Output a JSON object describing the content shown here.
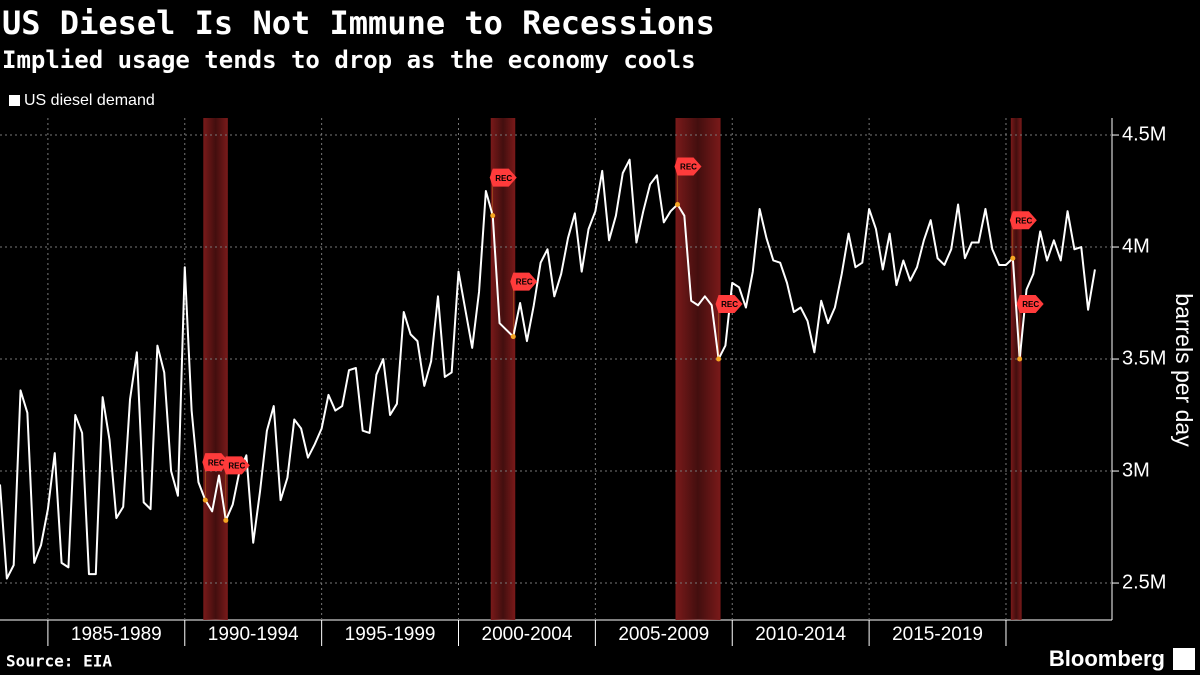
{
  "chart_data": {
    "type": "line",
    "title": "US Diesel Is Not Immune to Recessions",
    "subtitle": "Implied usage tends to drop as the economy cools",
    "y_label": "barrels per day",
    "source": "Source: EIA",
    "brand": "Bloomberg",
    "recession_label": "REC",
    "recession_color": "#7a1a1a",
    "marker_color": "#f5a623",
    "grid": true,
    "legend": "top-left",
    "x": [
      1983.25,
      1983.5,
      1983.75,
      1984,
      1984.25,
      1984.5,
      1984.75,
      1985,
      1985.25,
      1985.5,
      1985.75,
      1986,
      1986.25,
      1986.5,
      1986.75,
      1987,
      1987.25,
      1987.5,
      1987.75,
      1988,
      1988.25,
      1988.5,
      1988.75,
      1989,
      1989.25,
      1989.5,
      1989.75,
      1990,
      1990.25,
      1990.5,
      1990.75,
      1991,
      1991.25,
      1991.5,
      1991.75,
      1992,
      1992.25,
      1992.5,
      1992.75,
      1993,
      1993.25,
      1993.5,
      1993.75,
      1994,
      1994.25,
      1994.5,
      1994.75,
      1995,
      1995.25,
      1995.5,
      1995.75,
      1996,
      1996.25,
      1996.5,
      1996.75,
      1997,
      1997.25,
      1997.5,
      1997.75,
      1998,
      1998.25,
      1998.5,
      1998.75,
      1999,
      1999.25,
      1999.5,
      1999.75,
      2000,
      2000.25,
      2000.5,
      2000.75,
      2001,
      2001.25,
      2001.5,
      2001.75,
      2002,
      2002.25,
      2002.5,
      2002.75,
      2003,
      2003.25,
      2003.5,
      2003.75,
      2004,
      2004.25,
      2004.5,
      2004.75,
      2005,
      2005.25,
      2005.5,
      2005.75,
      2006,
      2006.25,
      2006.5,
      2006.75,
      2007,
      2007.25,
      2007.5,
      2007.75,
      2008,
      2008.25,
      2008.5,
      2008.75,
      2009,
      2009.25,
      2009.5,
      2009.75,
      2010,
      2010.25,
      2010.5,
      2010.75,
      2011,
      2011.25,
      2011.5,
      2011.75,
      2012,
      2012.25,
      2012.5,
      2012.75,
      2013,
      2013.25,
      2013.5,
      2013.75,
      2014,
      2014.25,
      2014.5,
      2014.75,
      2015,
      2015.25,
      2015.5,
      2015.75,
      2016,
      2016.25,
      2016.5,
      2016.75,
      2017,
      2017.25,
      2017.5,
      2017.75,
      2018,
      2018.25,
      2018.5,
      2018.75,
      2019,
      2019.25,
      2019.5,
      2019.75,
      2020,
      2020.25,
      2020.5,
      2020.75,
      2021,
      2021.25,
      2021.5,
      2021.75,
      2022,
      2022.25,
      2022.5,
      2022.75,
      2023,
      2023.25
    ],
    "series": [
      {
        "name": "US diesel demand",
        "color": "#ffffff",
        "values": [
          2940000,
          2520000,
          2580000,
          3360000,
          3260000,
          2590000,
          2670000,
          2830000,
          3080000,
          2590000,
          2570000,
          3250000,
          3170000,
          2540000,
          2540000,
          3330000,
          3140000,
          2790000,
          2840000,
          3320000,
          3530000,
          2860000,
          2830000,
          3560000,
          3440000,
          3000000,
          2890000,
          3910000,
          3270000,
          2950000,
          2870000,
          2820000,
          2980000,
          2780000,
          2850000,
          3000000,
          3070000,
          2680000,
          2910000,
          3180000,
          3290000,
          2870000,
          2970000,
          3230000,
          3190000,
          3060000,
          3120000,
          3190000,
          3340000,
          3270000,
          3290000,
          3450000,
          3460000,
          3180000,
          3170000,
          3430000,
          3500000,
          3250000,
          3300000,
          3710000,
          3610000,
          3580000,
          3380000,
          3490000,
          3780000,
          3420000,
          3440000,
          3890000,
          3720000,
          3550000,
          3800000,
          4250000,
          4140000,
          3660000,
          3630000,
          3600000,
          3750000,
          3580000,
          3740000,
          3930000,
          3990000,
          3780000,
          3880000,
          4040000,
          4150000,
          3890000,
          4080000,
          4160000,
          4340000,
          4030000,
          4140000,
          4330000,
          4390000,
          4020000,
          4160000,
          4280000,
          4320000,
          4110000,
          4160000,
          4190000,
          4140000,
          3760000,
          3740000,
          3780000,
          3740000,
          3500000,
          3560000,
          3840000,
          3820000,
          3730000,
          3890000,
          4170000,
          4040000,
          3940000,
          3930000,
          3840000,
          3710000,
          3730000,
          3670000,
          3530000,
          3760000,
          3660000,
          3730000,
          3880000,
          4060000,
          3910000,
          3930000,
          4170000,
          4080000,
          3900000,
          4060000,
          3830000,
          3940000,
          3850000,
          3910000,
          4030000,
          4120000,
          3950000,
          3920000,
          3990000,
          4190000,
          3950000,
          4020000,
          4020000,
          4170000,
          3990000,
          3920000,
          3920000,
          3950000,
          3500000,
          3810000,
          3880000,
          4070000,
          3940000,
          4030000,
          3940000,
          4160000,
          3990000,
          4000000,
          3720000,
          3900000
        ]
      }
    ],
    "recessions": [
      [
        1990.75,
        1991.5
      ],
      [
        2001.25,
        2002
      ],
      [
        2008,
        2009.5
      ],
      [
        2020.25,
        2020.5
      ]
    ],
    "xlim": [
      1983.25,
      2023.8
    ],
    "xticks": [
      {
        "value": 1985,
        "label": "1985-1989"
      },
      {
        "value": 1990,
        "label": "1990-1994"
      },
      {
        "value": 1995,
        "label": "1995-1999"
      },
      {
        "value": 2000,
        "label": "2000-2004"
      },
      {
        "value": 2005,
        "label": "2005-2009"
      },
      {
        "value": 2010,
        "label": "2010-2014"
      },
      {
        "value": 2015,
        "label": "2015-2019"
      },
      {
        "value": 2020,
        "label": null
      }
    ],
    "ylim": [
      2335000,
      4576000
    ],
    "yticks": [
      {
        "value": 2500000,
        "label": "2.5M"
      },
      {
        "value": 3000000,
        "label": "3M"
      },
      {
        "value": 3500000,
        "label": "3.5M"
      },
      {
        "value": 4000000,
        "label": "4M"
      },
      {
        "value": 4500000,
        "label": "4.5M"
      }
    ]
  }
}
